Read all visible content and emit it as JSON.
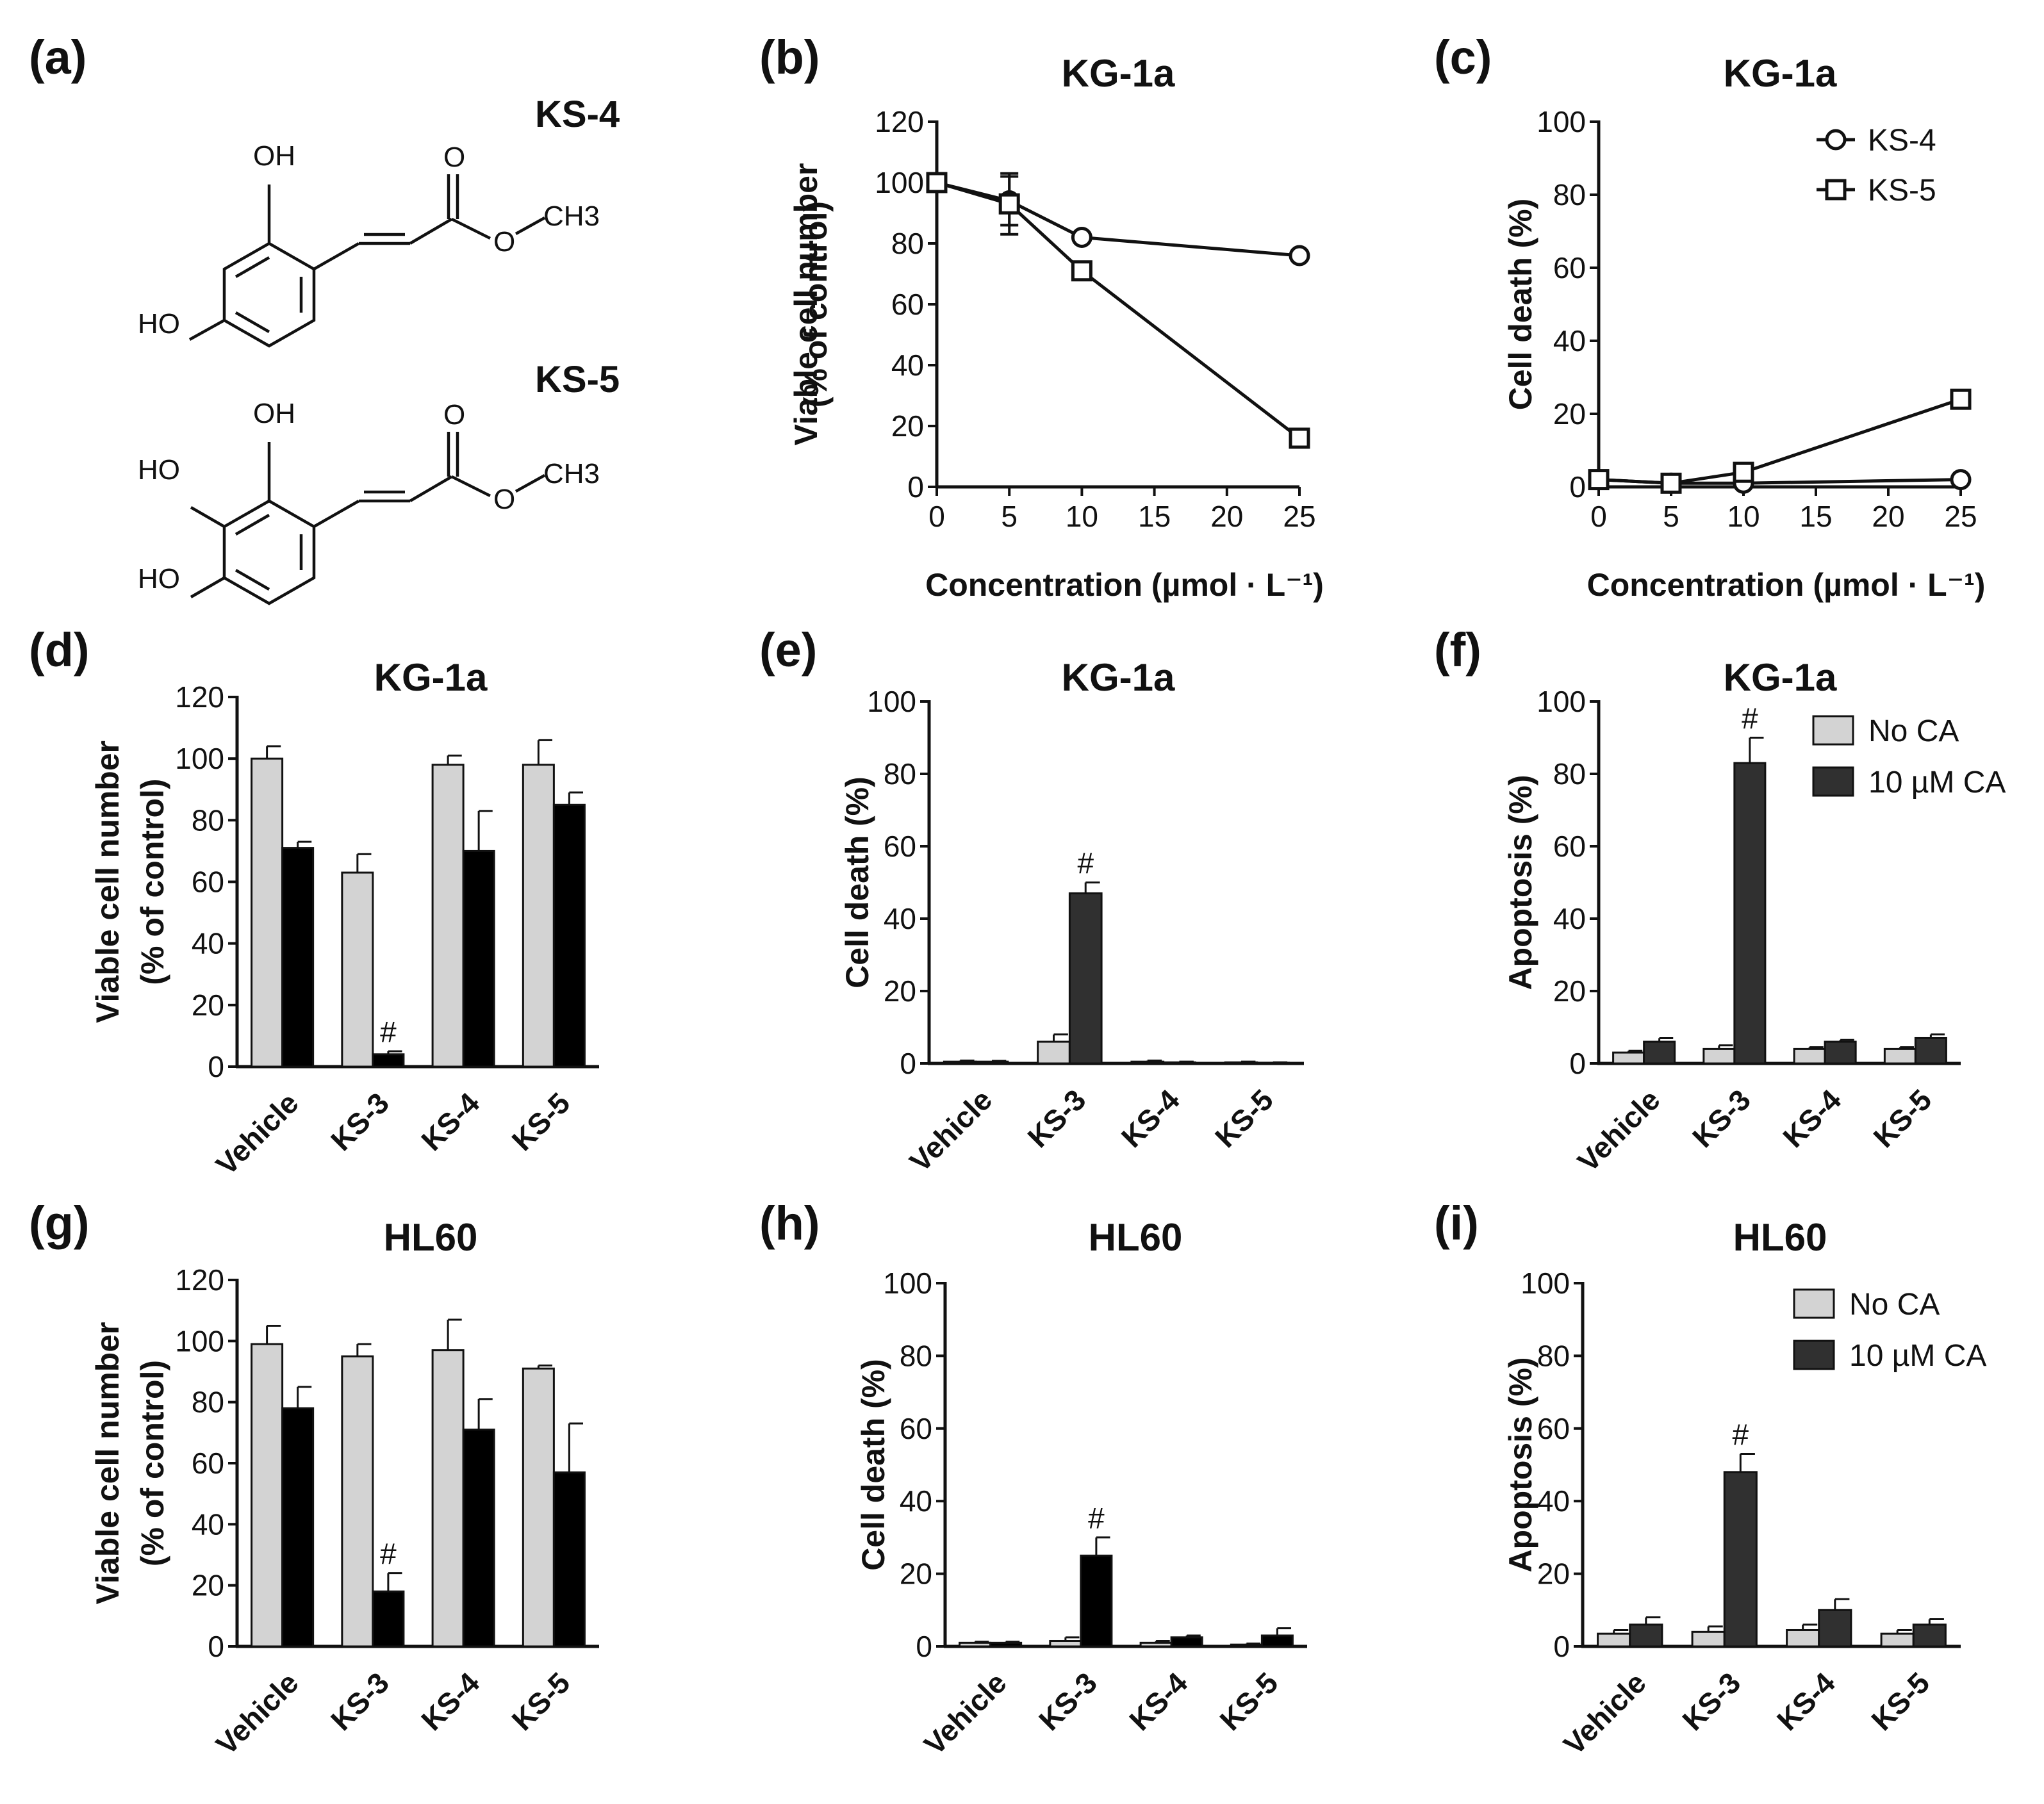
{
  "colors": {
    "light": "#d3d3d3",
    "dark": "#303030",
    "black": "#000000",
    "axis": "#111111"
  },
  "structures": {
    "label": "(a)",
    "compounds": [
      {
        "name": "KS-4",
        "groups": [
          "OH",
          "O",
          "HO",
          "O",
          "CH3"
        ]
      },
      {
        "name": "KS-5",
        "groups": [
          "OH",
          "O",
          "HO",
          "HO",
          "O",
          "CH3"
        ]
      }
    ]
  },
  "chart_data": [
    {
      "id": "b",
      "label": "(b)",
      "type": "line",
      "title": "KG-1a",
      "xlabel": "Concentration (µmol · L⁻¹)",
      "ylabel": [
        "Viable cell number",
        "(% of control)"
      ],
      "x": [
        0,
        5,
        10,
        25
      ],
      "xticks": [
        0,
        5,
        10,
        15,
        20,
        25
      ],
      "xlim": [
        0,
        25
      ],
      "ylim": [
        0,
        120
      ],
      "yticks": [
        0,
        20,
        40,
        60,
        80,
        100,
        120
      ],
      "series": [
        {
          "name": "KS-4",
          "marker": "circle",
          "values": [
            100,
            94,
            82,
            76
          ],
          "errors": [
            0,
            8,
            0,
            0
          ]
        },
        {
          "name": "KS-5",
          "marker": "square",
          "values": [
            100,
            93,
            71,
            16
          ],
          "errors": [
            0,
            10,
            0,
            0
          ]
        }
      ]
    },
    {
      "id": "c",
      "label": "(c)",
      "type": "line",
      "title": "KG-1a",
      "xlabel": "Concentration (µmol · L⁻¹)",
      "ylabel": [
        "Cell death (%)"
      ],
      "x": [
        0,
        5,
        10,
        25
      ],
      "xticks": [
        0,
        5,
        10,
        15,
        20,
        25
      ],
      "xlim": [
        0,
        25
      ],
      "ylim": [
        0,
        100
      ],
      "yticks": [
        0,
        20,
        40,
        60,
        80,
        100
      ],
      "legend_position": "top-right",
      "series": [
        {
          "name": "KS-4",
          "marker": "circle",
          "values": [
            2,
            1,
            1,
            2
          ]
        },
        {
          "name": "KS-5",
          "marker": "square",
          "values": [
            2,
            1,
            4,
            24
          ]
        }
      ]
    },
    {
      "id": "d",
      "label": "(d)",
      "type": "bar",
      "title": "KG-1a",
      "ylabel": [
        "Viable cell number",
        "(% of control)"
      ],
      "categories": [
        "Vehicle",
        "KS-3",
        "KS-4",
        "KS-5"
      ],
      "ylim": [
        0,
        120
      ],
      "yticks": [
        0,
        20,
        40,
        60,
        80,
        100,
        120
      ],
      "series": [
        {
          "name": "No CA",
          "color": "light",
          "values": [
            100,
            63,
            98,
            98
          ],
          "errors": [
            4,
            6,
            3,
            8
          ]
        },
        {
          "name": "10 µM CA",
          "color": "black",
          "values": [
            71,
            4,
            70,
            85
          ],
          "errors": [
            2,
            1,
            13,
            4
          ]
        }
      ],
      "annotations": [
        {
          "category": 1,
          "series": 1,
          "text": "#"
        }
      ]
    },
    {
      "id": "e",
      "label": "(e)",
      "type": "bar",
      "title": "KG-1a",
      "ylabel": [
        "Cell death (%)"
      ],
      "categories": [
        "Vehicle",
        "KS-3",
        "KS-4",
        "KS-5"
      ],
      "ylim": [
        0,
        100
      ],
      "yticks": [
        0,
        20,
        40,
        60,
        80,
        100
      ],
      "series": [
        {
          "name": "No CA",
          "color": "light",
          "values": [
            0.5,
            6,
            0.5,
            0.3
          ],
          "errors": [
            0.3,
            2,
            0.3,
            0.2
          ]
        },
        {
          "name": "10 µM CA",
          "color": "dark",
          "values": [
            0.5,
            47,
            0.3,
            0.2
          ],
          "errors": [
            0.2,
            3,
            0.2,
            0.1
          ]
        }
      ],
      "annotations": [
        {
          "category": 1,
          "series": 1,
          "text": "#"
        }
      ]
    },
    {
      "id": "f",
      "label": "(f)",
      "type": "bar",
      "title": "KG-1a",
      "ylabel": [
        "Apoptosis (%)"
      ],
      "categories": [
        "Vehicle",
        "KS-3",
        "KS-4",
        "KS-5"
      ],
      "ylim": [
        0,
        100
      ],
      "yticks": [
        0,
        20,
        40,
        60,
        80,
        100
      ],
      "legend_position": "top-right",
      "series": [
        {
          "name": "No CA",
          "color": "light",
          "values": [
            3,
            4,
            4,
            4
          ],
          "errors": [
            0.5,
            1,
            0.5,
            0.5
          ]
        },
        {
          "name": "10 µM CA",
          "color": "dark",
          "values": [
            6,
            83,
            6,
            7
          ],
          "errors": [
            1,
            7,
            0.5,
            1
          ]
        }
      ],
      "annotations": [
        {
          "category": 1,
          "series": 1,
          "text": "#"
        }
      ]
    },
    {
      "id": "g",
      "label": "(g)",
      "type": "bar",
      "title": "HL60",
      "ylabel": [
        "Viable cell number",
        "(% of control)"
      ],
      "categories": [
        "Vehicle",
        "KS-3",
        "KS-4",
        "KS-5"
      ],
      "ylim": [
        0,
        120
      ],
      "yticks": [
        0,
        20,
        40,
        60,
        80,
        100,
        120
      ],
      "series": [
        {
          "name": "No CA",
          "color": "light",
          "values": [
            99,
            95,
            97,
            91
          ],
          "errors": [
            6,
            4,
            10,
            1
          ]
        },
        {
          "name": "10 µM CA",
          "color": "black",
          "values": [
            78,
            18,
            71,
            57
          ],
          "errors": [
            7,
            6,
            10,
            16
          ]
        }
      ],
      "annotations": [
        {
          "category": 1,
          "series": 1,
          "text": "#"
        }
      ]
    },
    {
      "id": "h",
      "label": "(h)",
      "type": "bar",
      "title": "HL60",
      "ylabel": [
        "Cell death (%)"
      ],
      "categories": [
        "Vehicle",
        "KS-3",
        "KS-4",
        "KS-5"
      ],
      "ylim": [
        0,
        100
      ],
      "yticks": [
        0,
        20,
        40,
        60,
        80,
        100
      ],
      "series": [
        {
          "name": "No CA",
          "color": "light",
          "values": [
            1,
            1.5,
            1,
            0.5
          ],
          "errors": [
            0.3,
            1,
            0.5,
            0.3
          ]
        },
        {
          "name": "10 µM CA",
          "color": "black",
          "values": [
            1,
            25,
            2.5,
            3
          ],
          "errors": [
            0.3,
            5,
            0.5,
            2
          ]
        }
      ],
      "annotations": [
        {
          "category": 1,
          "series": 1,
          "text": "#"
        }
      ]
    },
    {
      "id": "i",
      "label": "(i)",
      "type": "bar",
      "title": "HL60",
      "ylabel": [
        "Apoptosis (%)"
      ],
      "categories": [
        "Vehicle",
        "KS-3",
        "KS-4",
        "KS-5"
      ],
      "ylim": [
        0,
        100
      ],
      "yticks": [
        0,
        20,
        40,
        60,
        80,
        100
      ],
      "legend_position": "top-right",
      "series": [
        {
          "name": "No CA",
          "color": "light",
          "values": [
            3.5,
            4,
            4.5,
            3.5
          ],
          "errors": [
            1,
            1.5,
            1.5,
            1
          ]
        },
        {
          "name": "10 µM CA",
          "color": "dark",
          "values": [
            6,
            48,
            10,
            6
          ],
          "errors": [
            2,
            5,
            3,
            1.5
          ]
        }
      ],
      "annotations": [
        {
          "category": 1,
          "series": 1,
          "text": "#"
        }
      ]
    }
  ]
}
